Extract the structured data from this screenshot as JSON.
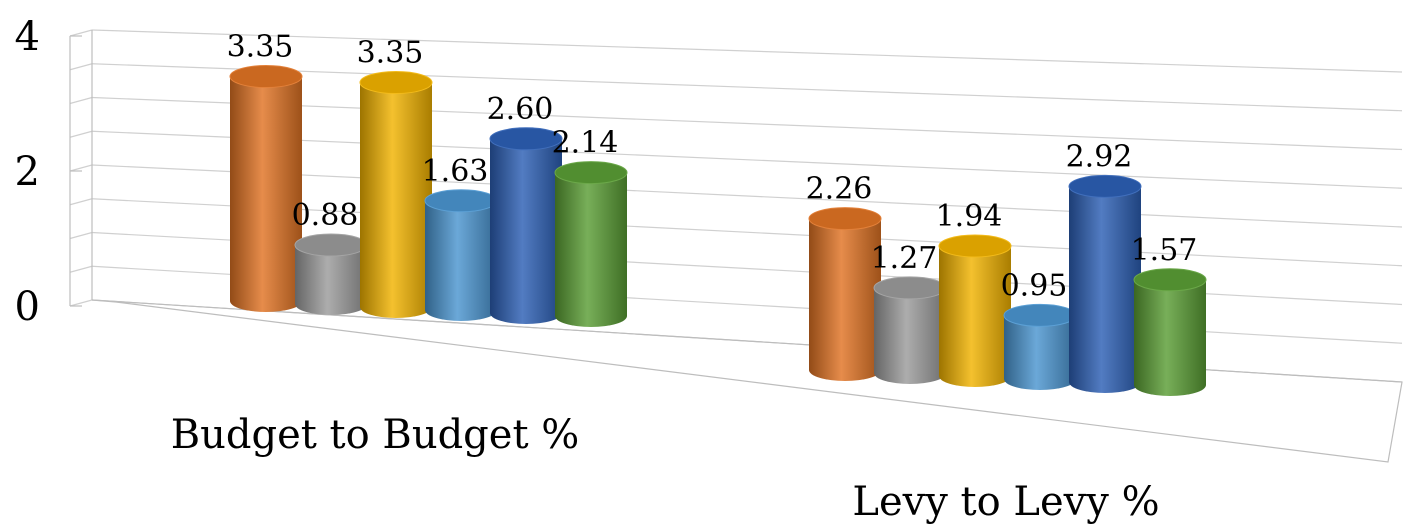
{
  "chart_data": {
    "type": "bar",
    "style": "3d-cylinder",
    "categories": [
      "Budget to Budget %",
      "Levy to Levy %"
    ],
    "series": [
      {
        "color": "#e07324",
        "values": [
          3.35,
          2.26
        ]
      },
      {
        "color": "#9b9b9b",
        "values": [
          0.88,
          1.27
        ]
      },
      {
        "color": "#f2b300",
        "values": [
          3.35,
          1.94
        ]
      },
      {
        "color": "#4a95d0",
        "values": [
          1.63,
          0.95
        ]
      },
      {
        "color": "#2c5fb5",
        "values": [
          2.6,
          2.92
        ]
      },
      {
        "color": "#5a9e35",
        "values": [
          2.14,
          1.57
        ]
      }
    ],
    "value_labels": [
      [
        "3.35",
        "2.26"
      ],
      [
        "0.88",
        "1.27"
      ],
      [
        "3.35",
        "1.94"
      ],
      [
        "1.63",
        "0.95"
      ],
      [
        "2.60",
        "2.92"
      ],
      [
        "2.14",
        "1.57"
      ]
    ],
    "y_ticks": [
      "0",
      "2",
      "4"
    ],
    "ylim": [
      0,
      4
    ],
    "grid": true,
    "legend": "none"
  }
}
